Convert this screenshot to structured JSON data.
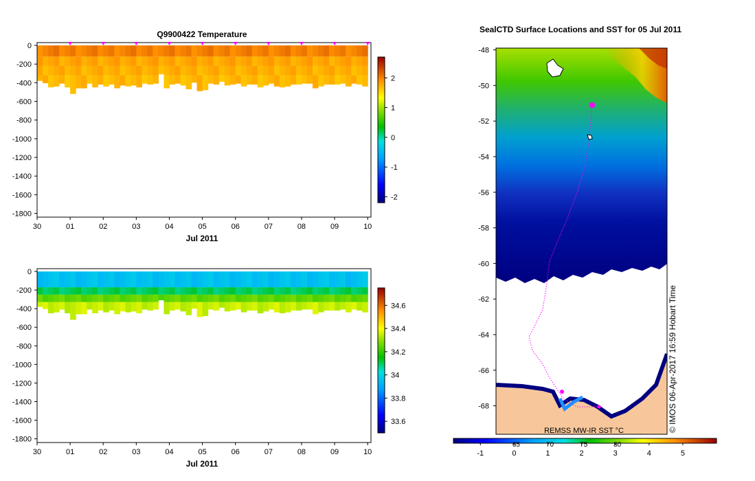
{
  "chart_data": [
    {
      "type": "heatmap",
      "id": "temperature",
      "title": "Q9900422  Temperature",
      "xlabel": "Jul 2011",
      "x_ticks": [
        "30",
        "01",
        "02",
        "03",
        "04",
        "05",
        "06",
        "07",
        "08",
        "09",
        "10"
      ],
      "xlim_days": [
        0,
        10.1
      ],
      "y_ticks": [
        0,
        -200,
        -400,
        -600,
        -800,
        -1000,
        -1200,
        -1400,
        -1600,
        -1800
      ],
      "ylim": [
        -1840,
        30
      ],
      "profile_markers_days": [
        1,
        2,
        3,
        4,
        5,
        6,
        7,
        8,
        9,
        10
      ],
      "profile_max_depth_m": [
        380,
        405,
        450,
        440,
        410,
        450,
        520,
        460,
        460,
        410,
        450,
        420,
        440,
        420,
        460,
        430,
        440,
        430,
        450,
        410,
        420,
        410,
        310,
        460,
        420,
        410,
        430,
        470,
        400,
        490,
        480,
        410,
        420,
        390,
        430,
        420,
        410,
        440,
        420,
        420,
        450,
        430,
        410,
        440,
        450,
        440,
        420,
        420,
        410,
        410,
        460,
        440,
        420,
        420,
        420,
        410,
        440,
        410,
        420,
        440
      ],
      "layers": [
        {
          "depth_range_m": [
            0,
            120
          ],
          "value": 2.0
        },
        {
          "depth_range_m": [
            120,
            220
          ],
          "value": 1.8
        },
        {
          "depth_range_m": [
            220,
            320
          ],
          "value": 1.75
        },
        {
          "depth_range_m": [
            320,
            520
          ],
          "value": 1.7
        }
      ],
      "colorbar": {
        "min": -2.2,
        "max": 2.7,
        "ticks": [
          -2,
          -1,
          0,
          1,
          2
        ],
        "tick_labels": [
          "-2",
          "-1",
          "0",
          "1",
          "2"
        ]
      }
    },
    {
      "type": "heatmap",
      "id": "salinity",
      "title": "",
      "xlabel": "Jul 2011",
      "x_ticks": [
        "30",
        "01",
        "02",
        "03",
        "04",
        "05",
        "06",
        "07",
        "08",
        "09",
        "10"
      ],
      "xlim_days": [
        0,
        10.1
      ],
      "y_ticks": [
        0,
        -200,
        -400,
        -600,
        -800,
        -1000,
        -1200,
        -1400,
        -1600,
        -1800
      ],
      "ylim": [
        -1840,
        30
      ],
      "layers": [
        {
          "depth_range_m": [
            0,
            170
          ],
          "value": 33.95
        },
        {
          "depth_range_m": [
            170,
            250
          ],
          "value": 34.1
        },
        {
          "depth_range_m": [
            250,
            330
          ],
          "value": 34.25
        },
        {
          "depth_range_m": [
            330,
            520
          ],
          "value": 34.35
        }
      ],
      "colorbar": {
        "min": 33.5,
        "max": 34.75,
        "ticks": [
          33.6,
          33.8,
          34,
          34.2,
          34.4,
          34.6
        ],
        "tick_labels": [
          "33.6",
          "33.8",
          "34",
          "34.2",
          "34.4",
          "34.6"
        ]
      }
    },
    {
      "type": "heatmap",
      "id": "sst-map",
      "title": "SealCTD Surface Locations and SST for 05 Jul 2011",
      "ylabel": "",
      "lat_ticks": [
        -48,
        -50,
        -52,
        -54,
        -56,
        -58,
        -60,
        -62,
        -64,
        -66,
        -68
      ],
      "lat_tick_labels": [
        "-48",
        "-50",
        "-52",
        "-54",
        "-56",
        "-58",
        "-60",
        "-62",
        "-64",
        "-66",
        "-68"
      ],
      "ylim_lat": [
        -69.6,
        -47.9
      ],
      "colorbar": {
        "min": -1.8,
        "max": 6.0,
        "ticks": [
          -1,
          0,
          1,
          2,
          3,
          4,
          5
        ],
        "tick_labels": [
          "-1",
          "0",
          "1",
          "2",
          "3",
          "4",
          "5"
        ],
        "longitude_labels": [
          "65",
          "70",
          "75",
          "80"
        ],
        "longitude_positions_c": [
          0.0,
          1.0,
          2.0,
          3.0
        ]
      },
      "source_label": "REMSS MW-IR SST °C",
      "credit": "© IMOS 06-Apr-2017 16:59 Hobart Time",
      "colors": {
        "land": "#f7c79b",
        "track": "#ff00ff",
        "missing": "#ffffff"
      }
    }
  ]
}
